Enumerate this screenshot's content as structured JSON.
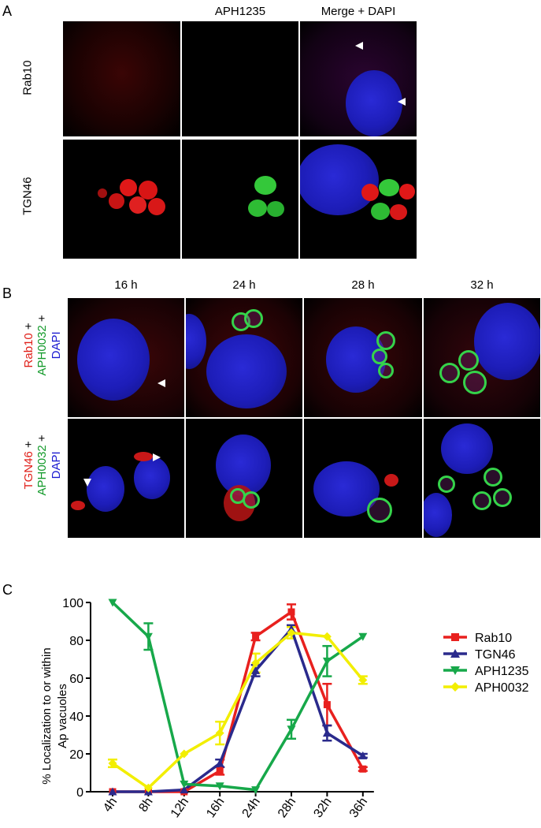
{
  "panel_a": {
    "letter": "A",
    "columns": [
      "",
      "APH1235",
      "Merge + DAPI"
    ],
    "rows": [
      "Rab10",
      "TGN46"
    ]
  },
  "panel_b": {
    "letter": "B",
    "columns": [
      "16 h",
      "24 h",
      "28 h",
      "32 h"
    ],
    "rows": [
      {
        "parts": [
          "Rab10",
          "+",
          "APH0032",
          "+",
          "DAPI"
        ]
      },
      {
        "parts": [
          "TGN46",
          "+",
          "APH0032",
          "+",
          "DAPI"
        ]
      }
    ],
    "colors": {
      "red": "#e0201a",
      "green": "#139a2a",
      "blue": "#1a1ad0"
    }
  },
  "panel_c": {
    "letter": "C",
    "ylabel_line1": "% Localization to or within",
    "ylabel_line2": "Ap vacuoles"
  },
  "chart_data": {
    "type": "line",
    "categories": [
      "4h",
      "8h",
      "12h",
      "16h",
      "24h",
      "28h",
      "32h",
      "36h"
    ],
    "ylim": [
      0,
      100
    ],
    "yticks": [
      "0",
      "20",
      "40",
      "60",
      "80",
      "100"
    ],
    "legend_position": "right",
    "series": [
      {
        "name": "Rab10",
        "color": "#e8201e",
        "marker": "square",
        "values": [
          0,
          0,
          0,
          11,
          82,
          95,
          46,
          12
        ],
        "errors": [
          0,
          0,
          0,
          2,
          2,
          4,
          11,
          1
        ]
      },
      {
        "name": "TGN46",
        "color": "#2a2a8c",
        "marker": "triangle-up",
        "values": [
          0,
          0,
          1,
          15,
          64,
          86,
          31,
          19
        ],
        "errors": [
          0,
          0,
          0,
          2,
          3,
          2,
          4,
          1
        ]
      },
      {
        "name": "APH1235",
        "color": "#17a84a",
        "marker": "triangle-down",
        "values": [
          100,
          82,
          4,
          3,
          1,
          33,
          69,
          82
        ],
        "errors": [
          0,
          7,
          0,
          0,
          0,
          5,
          8,
          0
        ]
      },
      {
        "name": "APH0032",
        "color": "#f2ee00",
        "marker": "diamond",
        "values": [
          15,
          2,
          20,
          31,
          68,
          84,
          82,
          59
        ],
        "errors": [
          2,
          0,
          0,
          6,
          5,
          3,
          0,
          2
        ]
      }
    ]
  }
}
